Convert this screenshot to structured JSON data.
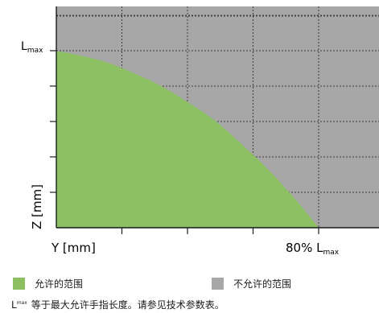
{
  "chart_data": {
    "type": "area",
    "x_axis": {
      "label": "Y [mm]",
      "end_label_main": "80% L",
      "end_label_sub": "max",
      "ticks": 5
    },
    "y_axis": {
      "label": "Z [mm]",
      "top_label_main": "L",
      "top_label_sub": "max",
      "ticks": 6
    },
    "grid": true,
    "series": [
      {
        "name": "允许的范围",
        "color": "#8cc063",
        "boundary": [
          [
            0,
            1.0
          ],
          [
            0.1,
            0.97
          ],
          [
            0.2,
            0.93
          ],
          [
            0.3,
            0.87
          ],
          [
            0.4,
            0.8
          ],
          [
            0.5,
            0.71
          ],
          [
            0.6,
            0.61
          ],
          [
            0.7,
            0.48
          ],
          [
            0.8,
            0.34
          ],
          [
            0.9,
            0.18
          ],
          [
            1.0,
            0
          ]
        ]
      }
    ],
    "background_color": "#a7a7a7"
  },
  "legend": [
    {
      "label": "允许的范围",
      "color": "#8cc063"
    },
    {
      "label": "不允许的范围",
      "color": "#a7a7a7"
    }
  ],
  "note": {
    "prefix": "L",
    "sup": "max",
    "text": "等于最大允许手指长度。请参见技术参数表。"
  }
}
